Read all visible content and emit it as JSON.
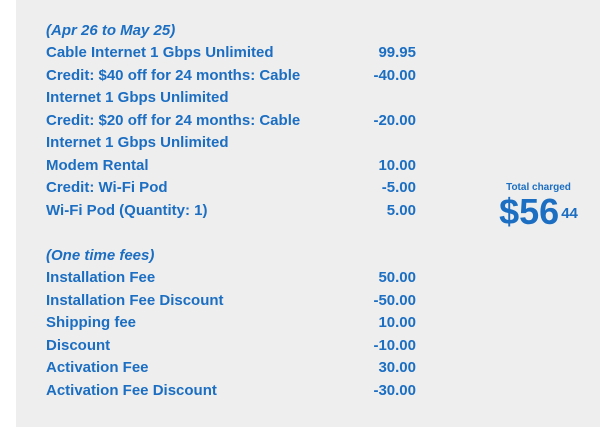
{
  "recurring": {
    "heading": "(Apr 26 to May 25)",
    "items": [
      {
        "label": "Cable Internet 1 Gbps Unlimited",
        "amount": "99.95"
      },
      {
        "label": "Credit: $40 off for 24 months: Cable Internet 1 Gbps Unlimited",
        "amount": "-40.00"
      },
      {
        "label": "Credit: $20 off for 24 months: Cable Internet 1 Gbps Unlimited",
        "amount": "-20.00"
      },
      {
        "label": "Modem Rental",
        "amount": "10.00"
      },
      {
        "label": "Credit: Wi-Fi Pod",
        "amount": "-5.00"
      },
      {
        "label": "Wi-Fi Pod (Quantity: 1)",
        "amount": "5.00"
      }
    ]
  },
  "one_time": {
    "heading": "(One time fees)",
    "items": [
      {
        "label": "Installation Fee",
        "amount": "50.00"
      },
      {
        "label": "Installation Fee Discount",
        "amount": "-50.00"
      },
      {
        "label": "Shipping fee",
        "amount": "10.00"
      },
      {
        "label": "Discount",
        "amount": "-10.00"
      },
      {
        "label": "Activation Fee",
        "amount": "30.00"
      },
      {
        "label": "Activation Fee Discount",
        "amount": "-30.00"
      }
    ]
  },
  "total": {
    "label": "Total charged",
    "dollars": "$56",
    "cents": "44"
  },
  "colors": {
    "text": "#1b6ec2",
    "panel": "#eeeeee"
  }
}
